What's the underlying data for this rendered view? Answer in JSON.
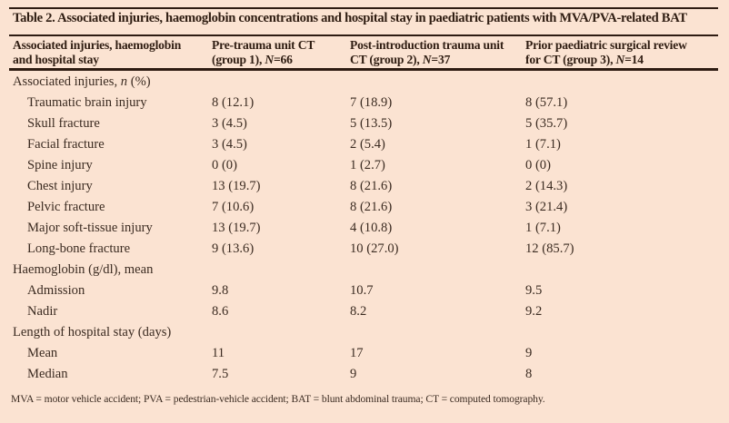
{
  "colors": {
    "background": "#fbe3d2",
    "text": "#3b2b21",
    "heading_text": "#2f1d12",
    "rule": "#2e1c12"
  },
  "table": {
    "title": "Table 2. Associated injuries, haemoglobin concentrations and hospital stay in paediatric patients with MVA/PVA-related BAT",
    "header": {
      "col1": {
        "line1": "Associated injuries, haemoglobin",
        "line2": "and hospital stay"
      },
      "col2": {
        "line1": "Pre-trauma unit CT",
        "line2_pre": "(group 1), ",
        "line2_italic": "N",
        "line2_post": "=66"
      },
      "col3": {
        "line1": "Post-introduction trauma unit",
        "line2_pre": "CT (group 2), ",
        "line2_italic": "N",
        "line2_post": "=37"
      },
      "col4": {
        "line1": "Prior paediatric surgical review",
        "line2_pre": "for CT (group 3), ",
        "line2_italic": "N",
        "line2_post": "=14"
      }
    },
    "rows": [
      {
        "type": "section",
        "label_pre": "Associated injuries, ",
        "label_italic": "n",
        "label_post": " (%)",
        "values": [
          "",
          "",
          ""
        ]
      },
      {
        "type": "item",
        "label": "Traumatic brain injury",
        "values": [
          "8 (12.1)",
          "7 (18.9)",
          "8 (57.1)"
        ]
      },
      {
        "type": "item",
        "label": "Skull fracture",
        "values": [
          "3 (4.5)",
          "5 (13.5)",
          "5 (35.7)"
        ]
      },
      {
        "type": "item",
        "label": "Facial fracture",
        "values": [
          "3 (4.5)",
          "2 (5.4)",
          "1 (7.1)"
        ]
      },
      {
        "type": "item",
        "label": "Spine injury",
        "values": [
          "0 (0)",
          "1 (2.7)",
          "0 (0)"
        ]
      },
      {
        "type": "item",
        "label": "Chest injury",
        "values": [
          "13 (19.7)",
          "8 (21.6)",
          "2 (14.3)"
        ]
      },
      {
        "type": "item",
        "label": "Pelvic fracture",
        "values": [
          "7 (10.6)",
          "8 (21.6)",
          "3 (21.4)"
        ]
      },
      {
        "type": "item",
        "label": "Major soft-tissue injury",
        "values": [
          "13 (19.7)",
          "4 (10.8)",
          "1 (7.1)"
        ]
      },
      {
        "type": "item",
        "label": "Long-bone fracture",
        "values": [
          "9 (13.6)",
          "10 (27.0)",
          "12 (85.7)"
        ]
      },
      {
        "type": "section",
        "label": "Haemoglobin (g/dl), mean",
        "values": [
          "",
          "",
          ""
        ]
      },
      {
        "type": "item",
        "label": "Admission",
        "values": [
          "9.8",
          "10.7",
          "9.5"
        ]
      },
      {
        "type": "item",
        "label": "Nadir",
        "values": [
          "8.6",
          "8.2",
          "9.2"
        ]
      },
      {
        "type": "section",
        "label": "Length of hospital stay (days)",
        "values": [
          "",
          "",
          ""
        ]
      },
      {
        "type": "item",
        "label": "Mean",
        "values": [
          "11",
          "17",
          "9"
        ]
      },
      {
        "type": "item",
        "label": "Median",
        "values": [
          "7.5",
          "9",
          "8"
        ]
      }
    ],
    "footnote": "MVA = motor vehicle accident; PVA = pedestrian-vehicle accident; BAT = blunt abdominal trauma; CT = computed tomography."
  }
}
